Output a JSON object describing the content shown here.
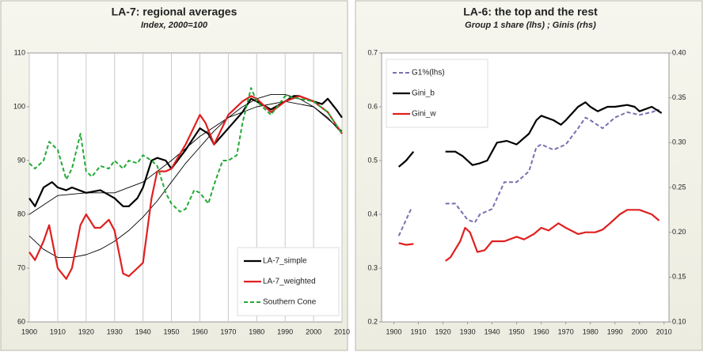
{
  "chart_data": [
    {
      "type": "line",
      "title": "LA-7: regional averages",
      "subtitle": "Index, 2000=100",
      "xlim": [
        1900,
        2010
      ],
      "xticks": [
        1900,
        1910,
        1920,
        1930,
        1940,
        1950,
        1960,
        1970,
        1980,
        1990,
        2000,
        2010
      ],
      "ylim": [
        60,
        110
      ],
      "yticks": [
        60,
        70,
        80,
        90,
        100,
        110
      ],
      "grid": "x",
      "legend": "lower right",
      "series": [
        {
          "color": "#000000",
          "style": "thin",
          "x": [
            1900,
            1905,
            1910,
            1915,
            1920,
            1925,
            1930,
            1935,
            1940,
            1945,
            1950,
            1955,
            1960,
            1965,
            1970,
            1975,
            1980,
            1985,
            1990,
            1995,
            2000,
            2005,
            2010
          ],
          "values": [
            76,
            73.5,
            72,
            72,
            72.5,
            73.5,
            75,
            77,
            79.5,
            82.5,
            86,
            89.5,
            92.5,
            95.5,
            98,
            100,
            101.5,
            102.3,
            102.3,
            101.5,
            100,
            98,
            95
          ]
        },
        {
          "color": "#000000",
          "style": "thin",
          "x": [
            1900,
            1910,
            1920,
            1930,
            1940,
            1950,
            1960,
            1970,
            1980,
            1990,
            2000,
            2010
          ],
          "values": [
            80,
            83.5,
            84,
            84,
            86,
            90,
            94.5,
            98,
            100,
            101,
            100,
            95.5
          ]
        },
        {
          "name": "LA-7_simple",
          "color": "#000000",
          "style": "solid",
          "x": [
            1900,
            1902,
            1905,
            1908,
            1910,
            1913,
            1915,
            1920,
            1925,
            1930,
            1933,
            1935,
            1938,
            1940,
            1943,
            1945,
            1948,
            1950,
            1955,
            1960,
            1963,
            1965,
            1970,
            1975,
            1978,
            1980,
            1985,
            1990,
            1993,
            1995,
            2000,
            2003,
            2005,
            2008,
            2010
          ],
          "values": [
            83,
            81.5,
            85,
            86,
            85,
            84.5,
            85,
            84,
            84.5,
            83,
            81.5,
            81.5,
            83,
            85,
            90,
            90.5,
            90,
            88.5,
            92,
            96,
            95,
            93,
            96,
            99,
            101.5,
            101,
            99.5,
            101,
            102,
            102,
            101,
            100.5,
            101.5,
            99.5,
            98
          ]
        },
        {
          "name": "LA-7_weighted",
          "color": "#e02020",
          "style": "solid",
          "x": [
            1900,
            1902,
            1905,
            1907,
            1910,
            1913,
            1915,
            1918,
            1920,
            1923,
            1925,
            1928,
            1930,
            1933,
            1935,
            1938,
            1940,
            1943,
            1945,
            1948,
            1950,
            1955,
            1960,
            1962,
            1965,
            1970,
            1975,
            1978,
            1980,
            1985,
            1990,
            1995,
            2000,
            2005,
            2010
          ],
          "values": [
            73,
            71.5,
            75,
            78,
            70,
            68,
            70,
            78,
            80,
            77.5,
            77.5,
            79,
            77,
            69,
            68.5,
            70,
            71,
            83,
            88,
            88,
            88.5,
            93,
            98.5,
            97,
            93,
            98.5,
            101,
            102,
            101.5,
            99,
            101,
            102,
            101,
            99,
            95
          ]
        },
        {
          "name": "Southern Cone",
          "color": "#22aa33",
          "style": "dashed",
          "x": [
            1900,
            1902,
            1905,
            1907,
            1910,
            1913,
            1915,
            1918,
            1920,
            1922,
            1925,
            1928,
            1930,
            1933,
            1935,
            1938,
            1940,
            1943,
            1945,
            1948,
            1950,
            1953,
            1955,
            1958,
            1960,
            1963,
            1965,
            1968,
            1970,
            1973,
            1975,
            1978,
            1980,
            1985,
            1990,
            1995,
            2000,
            2005,
            2010
          ],
          "values": [
            89.5,
            88.5,
            90,
            93.5,
            92,
            86.5,
            88.5,
            95,
            88,
            87,
            89,
            88.5,
            90,
            88.5,
            90,
            89.5,
            91,
            90,
            89,
            84,
            82,
            80.5,
            81,
            84.5,
            84,
            82,
            85.5,
            90,
            90,
            91,
            97,
            103.5,
            101,
            98.5,
            102,
            101.5,
            101,
            99,
            95
          ]
        }
      ]
    },
    {
      "type": "line",
      "title": "LA-6: the top and the rest",
      "subtitle": "Group 1 share (lhs) ; Ginis (rhs)",
      "xlim": [
        1895,
        2012
      ],
      "xticks": [
        1900,
        1910,
        1920,
        1930,
        1940,
        1950,
        1960,
        1970,
        1980,
        1990,
        2000,
        2010
      ],
      "ylim": [
        0.2,
        0.7
      ],
      "yticks": [
        0.2,
        0.3,
        0.4,
        0.5,
        0.6,
        0.7
      ],
      "y2lim": [
        0.1,
        0.4
      ],
      "y2ticks": [
        {
          "value": 0.1,
          "label": "0.10"
        },
        {
          "value": 0.15,
          "label": "0.15"
        },
        {
          "value": 0.2,
          "label": "0.20"
        },
        {
          "value": 0.25,
          "label": "0.25"
        },
        {
          "value": 0.3,
          "label": "0.30"
        },
        {
          "value": 0.35,
          "label": "0.35"
        },
        {
          "value": 0.4,
          "label": "0.40"
        }
      ],
      "grid": false,
      "legend": "upper left",
      "series": [
        {
          "name": "G1%(lhs)",
          "color": "#7b6fb0",
          "style": "dashed",
          "x": [
            1902,
            1905,
            1907,
            1914,
            1921,
            1925,
            1930,
            1933,
            1935,
            1940,
            1945,
            1950,
            1955,
            1958,
            1960,
            1965,
            1970,
            1975,
            1978,
            1980,
            1985,
            1990,
            1995,
            2000,
            2005,
            2008
          ],
          "values": [
            0.36,
            0.39,
            0.41,
            null,
            0.42,
            0.42,
            0.39,
            0.385,
            0.4,
            0.41,
            0.46,
            0.46,
            0.48,
            0.525,
            0.53,
            0.52,
            0.53,
            0.56,
            0.58,
            0.575,
            0.56,
            0.58,
            0.59,
            0.585,
            0.59,
            0.595
          ]
        },
        {
          "name": "Gini_b",
          "color": "#000000",
          "style": "solid",
          "axis": "y2",
          "x": [
            1902,
            1905,
            1908,
            1914,
            1921,
            1925,
            1928,
            1932,
            1935,
            1938,
            1942,
            1946,
            1950,
            1955,
            1958,
            1960,
            1965,
            1968,
            1970,
            1975,
            1978,
            1980,
            1983,
            1987,
            1990,
            1995,
            1998,
            2000,
            2005,
            2009
          ],
          "values": [
            0.273,
            0.28,
            0.29,
            null,
            0.29,
            0.29,
            0.285,
            0.275,
            0.277,
            0.28,
            0.3,
            0.302,
            0.298,
            0.31,
            0.325,
            0.33,
            0.325,
            0.32,
            0.325,
            0.34,
            0.345,
            0.34,
            0.335,
            0.34,
            0.34,
            0.342,
            0.34,
            0.335,
            0.34,
            0.333
          ]
        },
        {
          "name": "Gini_w",
          "color": "#e02020",
          "style": "solid",
          "axis": "y2",
          "x": [
            1902,
            1905,
            1908,
            1914,
            1921,
            1923,
            1927,
            1929,
            1931,
            1934,
            1937,
            1940,
            1945,
            1950,
            1953,
            1957,
            1960,
            1963,
            1967,
            1970,
            1975,
            1978,
            1982,
            1985,
            1988,
            1992,
            1995,
            2000,
            2005,
            2008
          ],
          "values": [
            0.188,
            0.186,
            0.187,
            null,
            0.168,
            0.172,
            0.19,
            0.205,
            0.2,
            0.178,
            0.18,
            0.19,
            0.19,
            0.195,
            0.192,
            0.198,
            0.205,
            0.202,
            0.21,
            0.205,
            0.198,
            0.2,
            0.2,
            0.203,
            0.21,
            0.22,
            0.225,
            0.225,
            0.22,
            0.213
          ]
        }
      ]
    }
  ]
}
